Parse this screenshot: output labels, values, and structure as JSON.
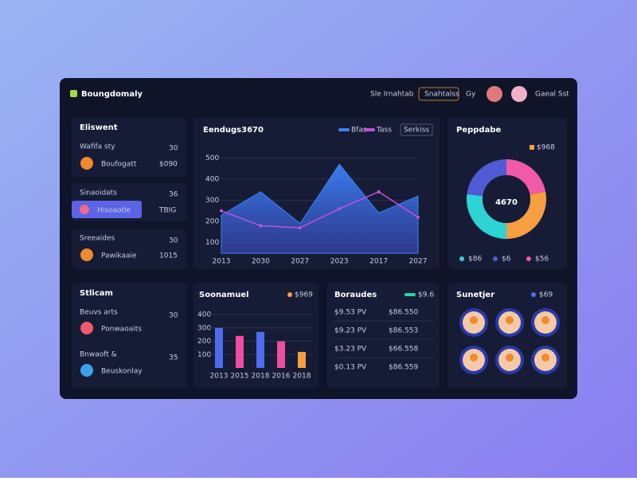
{
  "header": {
    "title": "Boungdomaly",
    "nav": [
      "Sle Irnahtab",
      "Snahtalss",
      "Gy"
    ],
    "user": "Gaeal Sst"
  },
  "cards": [
    {
      "title": "Eliswent",
      "subtitle": "Wafifa sty",
      "count": 30,
      "item": "Boufogatt",
      "amount": "$090"
    },
    {
      "title": "Sinaoidats",
      "count": 36,
      "item": "Hisoaotle",
      "amount": "TBIG"
    },
    {
      "title": "Sreeaides",
      "count": 30,
      "item": "Pawikaaie",
      "amount": "1015"
    }
  ],
  "list": {
    "title": "Stlicam",
    "rows": [
      {
        "label": "Beuvs arts",
        "count": 30,
        "item": "Ponwaoaits"
      },
      {
        "label": "Bnwaoft &",
        "count": 35,
        "item": "Beuskonlay"
      }
    ]
  },
  "table": {
    "title": "Boraudes",
    "legend": "$9.6",
    "rows": [
      [
        "$9.53 PV",
        "$86.550"
      ],
      [
        "$9.23 PV",
        "$86.553"
      ],
      [
        "$3.23 PV",
        "$66.558"
      ],
      [
        "$0.13 PV",
        "$86.559"
      ]
    ]
  },
  "avatars": {
    "title": "Sunetjer",
    "legend": "$69"
  },
  "chart_data": [
    {
      "type": "area",
      "title": "Eendugs3670",
      "button": "Serkiss",
      "categories": [
        "2013",
        "2030",
        "2027",
        "2023",
        "2017",
        "2027"
      ],
      "series": [
        {
          "name": "Bfas",
          "color": "#3b82f6",
          "values": [
            230,
            340,
            190,
            470,
            240,
            320
          ]
        },
        {
          "name": "Tass",
          "color": "#c052d8",
          "values": [
            250,
            180,
            170,
            260,
            340,
            220
          ]
        }
      ],
      "ylim": [
        50,
        550
      ],
      "yticks": [
        500,
        400,
        300,
        200,
        100
      ],
      "grid": true
    },
    {
      "type": "pie",
      "title": "Peppdabe",
      "center_label": "4670",
      "legend": "$968",
      "categories": [
        "$86",
        "$6",
        "$56",
        null
      ],
      "values": [
        22,
        28,
        27,
        23
      ],
      "colors": [
        "#f05aa8",
        "#f59e42",
        "#2dd4d4",
        "#4f5bd5"
      ]
    },
    {
      "type": "bar",
      "title": "Soonamuel",
      "legend": "$969",
      "categories": [
        "2013",
        "2015",
        "2018",
        "2016",
        "2018"
      ],
      "values": [
        300,
        240,
        270,
        200,
        120
      ],
      "colors": [
        "#4f6bef",
        "#ec4fa0",
        "#4f6bef",
        "#ec4fa0",
        "#f59e42"
      ],
      "ylim": [
        0,
        400
      ],
      "yticks": [
        100,
        200,
        300,
        400
      ],
      "grid": true
    }
  ]
}
